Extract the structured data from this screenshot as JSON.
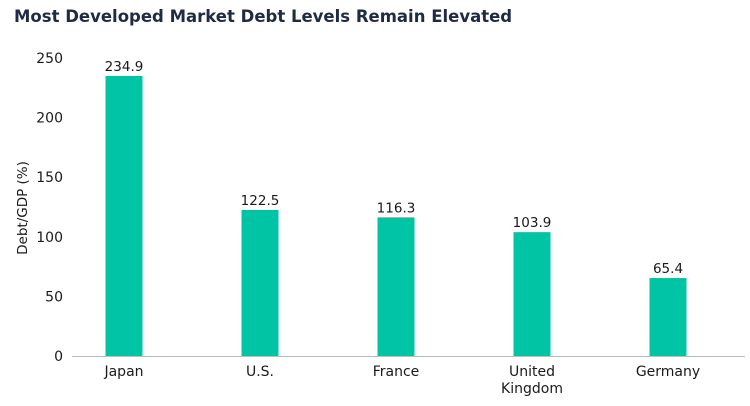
{
  "chart_data": {
    "type": "bar",
    "title": "Most Developed Market Debt Levels Remain Elevated",
    "categories": [
      "Japan",
      "U.S.",
      "France",
      "United Kingdom",
      "Germany"
    ],
    "category_lines": [
      [
        "Japan"
      ],
      [
        "U.S."
      ],
      [
        "France"
      ],
      [
        "United",
        "Kingdom"
      ],
      [
        "Germany"
      ]
    ],
    "values": [
      234.9,
      122.5,
      116.3,
      103.9,
      65.4
    ],
    "data_labels": [
      "234.9",
      "122.5",
      "116.3",
      "103.9",
      "65.4"
    ],
    "xlabel": "",
    "ylabel": "Debt/GDP (%)",
    "ylim": [
      0,
      250
    ],
    "yticks": [
      0,
      50,
      100,
      150,
      200,
      250
    ],
    "grid": false,
    "bar_color": "#00c4a3",
    "axis_color": "#bdbdbd"
  }
}
